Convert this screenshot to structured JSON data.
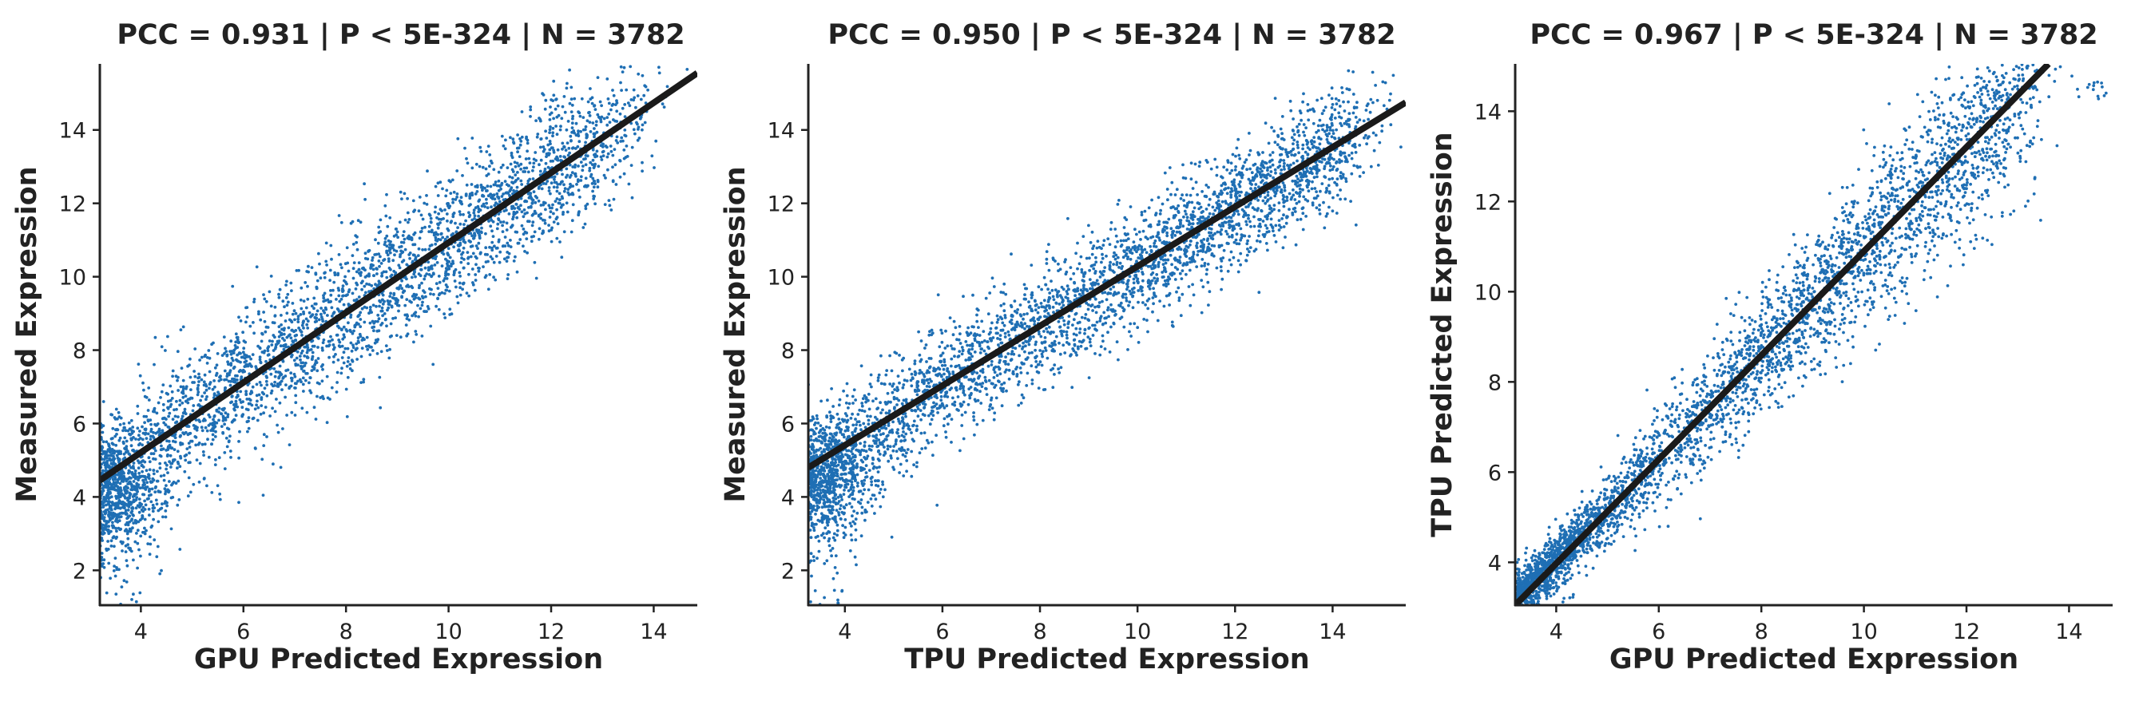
{
  "colors": {
    "points": "#1f6fb4",
    "fit_line": "#1a1a1a",
    "axes": "#222222",
    "background": "#ffffff"
  },
  "chart_data": [
    {
      "type": "scatter",
      "title": "PCC =  0.931 | P <  5E-324 | N = 3782",
      "xlabel": "GPU Predicted Expression",
      "ylabel": "Measured Expression",
      "xlim": [
        3.2,
        14.85
      ],
      "ylim": [
        1.05,
        15.8
      ],
      "xticks": [
        4,
        6,
        8,
        10,
        12,
        14
      ],
      "yticks": [
        2,
        4,
        6,
        8,
        10,
        12,
        14
      ],
      "grid": false,
      "legend": "none",
      "n_points": 3782,
      "fit_line": {
        "x": [
          3.2,
          14.85
        ],
        "y": [
          4.45,
          15.55
        ]
      },
      "point_pattern": {
        "x_range": [
          3.2,
          14.8
        ],
        "trend": "y ≈ 0.95x + 1.4",
        "spread_sd": 0.95,
        "spread_note": "dense cluster near x 3.2–4.5, y 3–6; tail to y ≈ 1 at left edge"
      }
    },
    {
      "type": "scatter",
      "title": "PCC =  0.950 | P <  5E-324 | N = 3782",
      "xlabel": "TPU Predicted Expression",
      "ylabel": "Measured Expression",
      "xlim": [
        3.25,
        15.5
      ],
      "ylim": [
        1.05,
        15.8
      ],
      "xticks": [
        4,
        6,
        8,
        10,
        12,
        14
      ],
      "yticks": [
        2,
        4,
        6,
        8,
        10,
        12,
        14
      ],
      "grid": false,
      "legend": "none",
      "n_points": 3782,
      "fit_line": {
        "x": [
          3.25,
          15.5
        ],
        "y": [
          4.8,
          14.75
        ]
      },
      "point_pattern": {
        "x_range": [
          3.25,
          15.0
        ],
        "trend": "y ≈ 0.81x + 2.15",
        "spread_sd": 0.8,
        "spread_note": "dense cluster near x 3.3–4.5, y 3–6"
      }
    },
    {
      "type": "scatter",
      "title": "PCC =  0.967 | P <  5E-324 | N = 3782",
      "xlabel": "GPU Predicted Expression",
      "ylabel": "TPU Predicted Expression",
      "xlim": [
        3.2,
        14.85
      ],
      "ylim": [
        3.05,
        15.05
      ],
      "xticks": [
        4,
        6,
        8,
        10,
        12,
        14
      ],
      "yticks": [
        4,
        6,
        8,
        10,
        12,
        14
      ],
      "grid": false,
      "legend": "none",
      "n_points": 3782,
      "fit_line": {
        "x": [
          3.2,
          13.6
        ],
        "y": [
          3.05,
          15.05
        ]
      },
      "point_pattern": {
        "x_range": [
          3.2,
          14.8
        ],
        "trend": "y ≈ 1.15x - 0.6",
        "spread_sd": 0.75,
        "spread_note": "tight near origin, widening toward x 8–12"
      }
    }
  ]
}
